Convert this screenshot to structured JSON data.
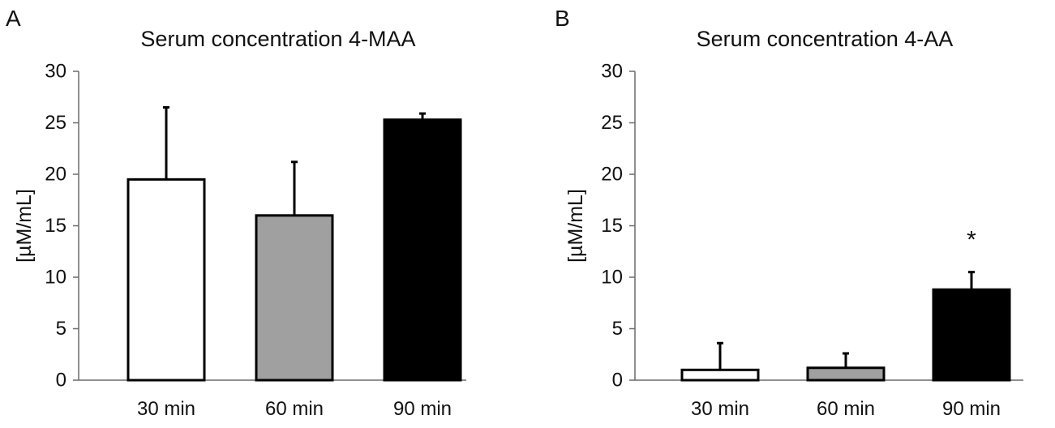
{
  "chart_data": [
    {
      "type": "bar",
      "panel_label": "A",
      "title": "Serum concentration 4-MAA",
      "ylabel": "[µM/mL]",
      "xlabel": "",
      "categories": [
        "30 min",
        "60 min",
        "90 min"
      ],
      "values": [
        19.5,
        16.0,
        25.3
      ],
      "error_upper": [
        7.0,
        5.2,
        0.6
      ],
      "bar_colors": [
        "#ffffff",
        "#a0a0a0",
        "#000000"
      ],
      "ylim": [
        0,
        30
      ],
      "yticks": [
        "0",
        "5",
        "10",
        "15",
        "20",
        "25",
        "30"
      ],
      "annotations": [],
      "grid": false,
      "legend": "none"
    },
    {
      "type": "bar",
      "panel_label": "B",
      "title": "Serum concentration 4-AA",
      "ylabel": "[µM/mL]",
      "xlabel": "",
      "categories": [
        "30 min",
        "60 min",
        "90 min"
      ],
      "values": [
        1.0,
        1.2,
        8.8
      ],
      "error_upper": [
        2.6,
        1.4,
        1.7
      ],
      "bar_colors": [
        "#ffffff",
        "#a0a0a0",
        "#000000"
      ],
      "ylim": [
        0,
        30
      ],
      "yticks": [
        "0",
        "5",
        "10",
        "15",
        "20",
        "25",
        "30"
      ],
      "annotations": [
        {
          "category": "90 min",
          "text": "*"
        }
      ],
      "grid": false,
      "legend": "none"
    }
  ]
}
